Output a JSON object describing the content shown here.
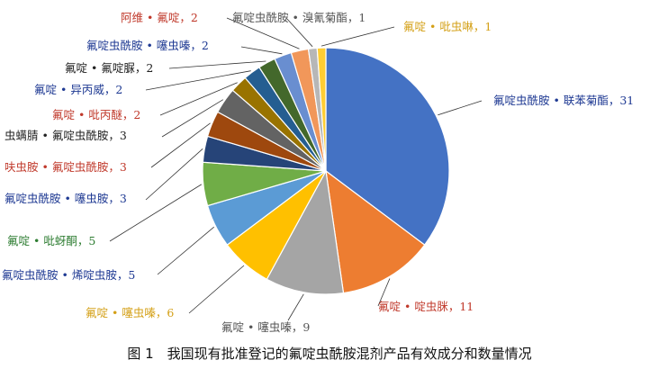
{
  "caption": "图 1　我国现有批准登记的氟啶虫酰胺混剂产品有效成分和数量情况",
  "chart_data": {
    "type": "pie",
    "title": "",
    "slices": [
      {
        "label": "氟啶虫酰胺 • 联苯菊酯",
        "value": 31,
        "color": "#4472c4",
        "text_color": "#1f3a93"
      },
      {
        "label": "氟啶 • 啶虫脒",
        "value": 11,
        "color": "#ed7d31",
        "text_color": "#c0392b"
      },
      {
        "label": "氟啶 • 噻虫嗪",
        "value": 9,
        "color": "#a5a5a5",
        "text_color": "#555555"
      },
      {
        "label": "氟啶 • 噻虫嗪",
        "value": 6,
        "color": "#ffc000",
        "text_color": "#d4a017"
      },
      {
        "label": "氟啶虫酰胺 • 烯啶虫胺",
        "value": 5,
        "color": "#5b9bd5",
        "text_color": "#1f3a93"
      },
      {
        "label": "氟啶 • 吡蚜酮",
        "value": 5,
        "color": "#70ad47",
        "text_color": "#2e7d32"
      },
      {
        "label": "氟啶虫酰胺 • 噻虫胺",
        "value": 3,
        "color": "#264478",
        "text_color": "#1f3a93"
      },
      {
        "label": "呋虫胺 • 氟啶虫酰胺",
        "value": 3,
        "color": "#9e480e",
        "text_color": "#c0392b"
      },
      {
        "label": "虫螨腈 • 氟啶虫酰胺",
        "value": 3,
        "color": "#636363",
        "text_color": "#222222"
      },
      {
        "label": "氟啶 • 吡丙醚",
        "value": 2,
        "color": "#997300",
        "text_color": "#c0392b"
      },
      {
        "label": "氟啶 • 异丙威",
        "value": 2,
        "color": "#255e91",
        "text_color": "#1f3a93"
      },
      {
        "label": "氟啶 • 氟啶脲",
        "value": 2,
        "color": "#43682b",
        "text_color": "#222222"
      },
      {
        "label": "氟啶虫酰胺 • 噻虫嗪",
        "value": 2,
        "color": "#698ed0",
        "text_color": "#1f3a93"
      },
      {
        "label": "阿维 • 氟啶",
        "value": 2,
        "color": "#f1975a",
        "text_color": "#c0392b"
      },
      {
        "label": "氟啶虫酰胺 • 溴氰菊酯",
        "value": 1,
        "color": "#b7b7b7",
        "text_color": "#555555"
      },
      {
        "label": "氟啶 • 吡虫啉",
        "value": 1,
        "color": "#ffcd33",
        "text_color": "#d4a017"
      }
    ],
    "legend": "none"
  }
}
